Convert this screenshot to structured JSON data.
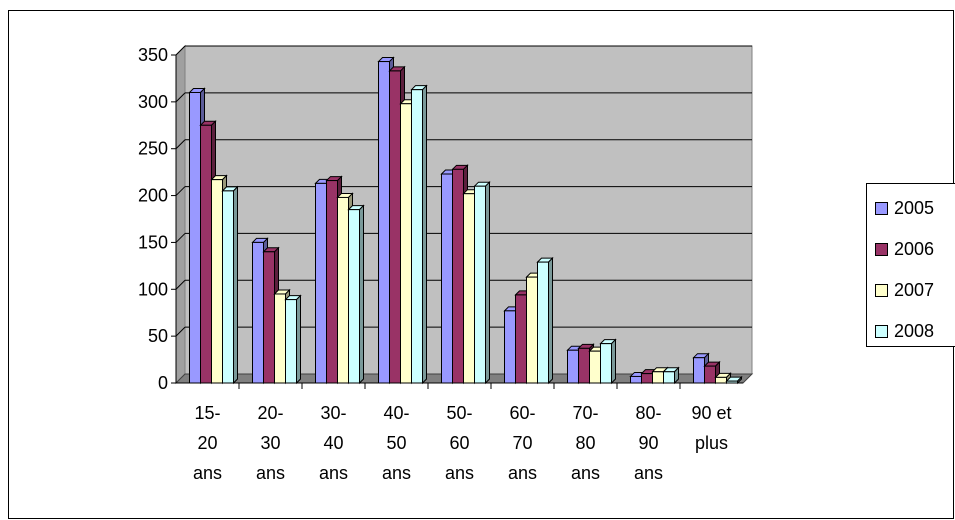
{
  "chart_data": {
    "type": "bar",
    "categories": [
      [
        "15-",
        "20",
        "ans"
      ],
      [
        "20-",
        "30",
        "ans"
      ],
      [
        "30-",
        "40",
        "ans"
      ],
      [
        "40-",
        "50",
        "ans"
      ],
      [
        "50-",
        "60",
        "ans"
      ],
      [
        "60-",
        "70",
        "ans"
      ],
      [
        "70-",
        "80",
        "ans"
      ],
      [
        "80-",
        "90",
        "ans"
      ],
      [
        "90 et",
        "plus"
      ]
    ],
    "series": [
      {
        "name": "2005",
        "color": "#9999ff",
        "values": [
          310,
          150,
          213,
          343,
          223,
          77,
          35,
          7,
          27
        ]
      },
      {
        "name": "2006",
        "color": "#993366",
        "values": [
          275,
          140,
          216,
          333,
          228,
          94,
          37,
          10,
          18
        ]
      },
      {
        "name": "2007",
        "color": "#ffffcc",
        "values": [
          217,
          95,
          198,
          298,
          202,
          113,
          34,
          12,
          6
        ]
      },
      {
        "name": "2008",
        "color": "#ccffff",
        "values": [
          205,
          89,
          185,
          313,
          210,
          129,
          42,
          12,
          2
        ]
      }
    ],
    "yticks": [
      0,
      50,
      100,
      150,
      200,
      250,
      300,
      350
    ],
    "ylim": [
      0,
      350
    ],
    "grid": true,
    "legend_position": "right",
    "plot_background": "#c0c0c0"
  }
}
